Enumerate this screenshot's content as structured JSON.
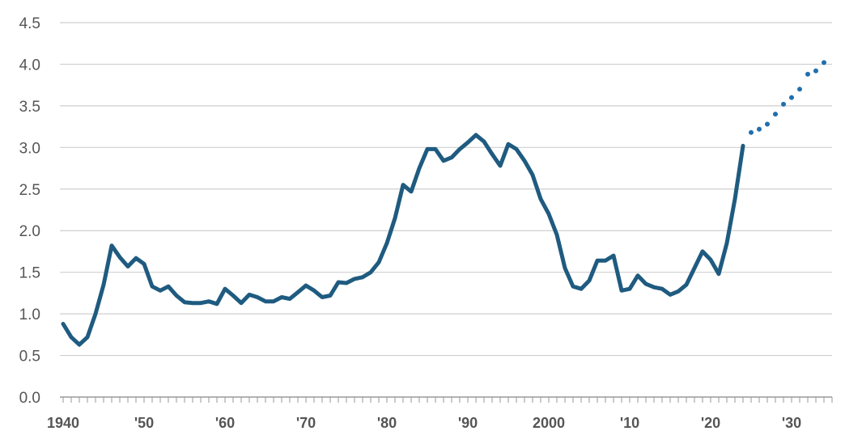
{
  "chart_data": {
    "type": "line",
    "title": "",
    "xlabel": "",
    "ylabel": "",
    "ylim": [
      0,
      4.5
    ],
    "xlim": [
      1940,
      2035
    ],
    "grid": "horizontal",
    "legend": "none",
    "y_ticks": [
      "0.0",
      "0.5",
      "1.0",
      "1.5",
      "2.0",
      "2.5",
      "3.0",
      "3.5",
      "4.0",
      "4.5"
    ],
    "x_ticks": [
      {
        "value": 1940,
        "label": "1940"
      },
      {
        "value": 1950,
        "label": "'50"
      },
      {
        "value": 1960,
        "label": "'60"
      },
      {
        "value": 1970,
        "label": "'70"
      },
      {
        "value": 1980,
        "label": "'80"
      },
      {
        "value": 1990,
        "label": "'90"
      },
      {
        "value": 2000,
        "label": "2000"
      },
      {
        "value": 2010,
        "label": "'10"
      },
      {
        "value": 2020,
        "label": "'20"
      },
      {
        "value": 2030,
        "label": "'30"
      }
    ],
    "series": [
      {
        "style": "solid",
        "color": "#1f5b80",
        "x": [
          1940,
          1941,
          1942,
          1943,
          1944,
          1945,
          1946,
          1947,
          1948,
          1949,
          1950,
          1951,
          1952,
          1953,
          1954,
          1955,
          1956,
          1957,
          1958,
          1959,
          1960,
          1961,
          1962,
          1963,
          1964,
          1965,
          1966,
          1967,
          1968,
          1969,
          1970,
          1971,
          1972,
          1973,
          1974,
          1975,
          1976,
          1977,
          1978,
          1979,
          1980,
          1981,
          1982,
          1983,
          1984,
          1985,
          1986,
          1987,
          1988,
          1989,
          1990,
          1991,
          1992,
          1993,
          1994,
          1995,
          1996,
          1997,
          1998,
          1999,
          2000,
          2001,
          2002,
          2003,
          2004,
          2005,
          2006,
          2007,
          2008,
          2009,
          2010,
          2011,
          2012,
          2013,
          2014,
          2015,
          2016,
          2017,
          2018,
          2019,
          2020,
          2021,
          2022,
          2023,
          2024
        ],
        "y": [
          0.88,
          0.72,
          0.63,
          0.72,
          1.0,
          1.35,
          1.82,
          1.68,
          1.57,
          1.67,
          1.6,
          1.33,
          1.28,
          1.33,
          1.22,
          1.14,
          1.13,
          1.13,
          1.15,
          1.12,
          1.3,
          1.22,
          1.13,
          1.23,
          1.2,
          1.15,
          1.15,
          1.2,
          1.18,
          1.26,
          1.34,
          1.28,
          1.2,
          1.22,
          1.38,
          1.37,
          1.42,
          1.44,
          1.5,
          1.62,
          1.85,
          2.15,
          2.55,
          2.47,
          2.75,
          2.98,
          2.98,
          2.84,
          2.88,
          2.98,
          3.06,
          3.15,
          3.07,
          2.92,
          2.78,
          3.04,
          2.98,
          2.84,
          2.67,
          2.38,
          2.2,
          1.95,
          1.55,
          1.33,
          1.3,
          1.4,
          1.64,
          1.64,
          1.7,
          1.28,
          1.3,
          1.46,
          1.36,
          1.32,
          1.3,
          1.23,
          1.27,
          1.35,
          1.55,
          1.75,
          1.65,
          1.48,
          1.85,
          2.38,
          3.02
        ]
      },
      {
        "style": "dotted",
        "color": "#1f6fae",
        "x": [
          2025,
          2026,
          2027,
          2028,
          2029,
          2030,
          2031,
          2032,
          2033,
          2034
        ],
        "y": [
          3.18,
          3.22,
          3.28,
          3.4,
          3.52,
          3.6,
          3.7,
          3.88,
          3.92,
          4.02
        ]
      }
    ]
  },
  "colors": {
    "solid_line": "#1f5b80",
    "dotted_line": "#1f6fae",
    "grid": "#cfcfcf",
    "axis": "#9a9a9a",
    "tick_text": "#555555"
  }
}
